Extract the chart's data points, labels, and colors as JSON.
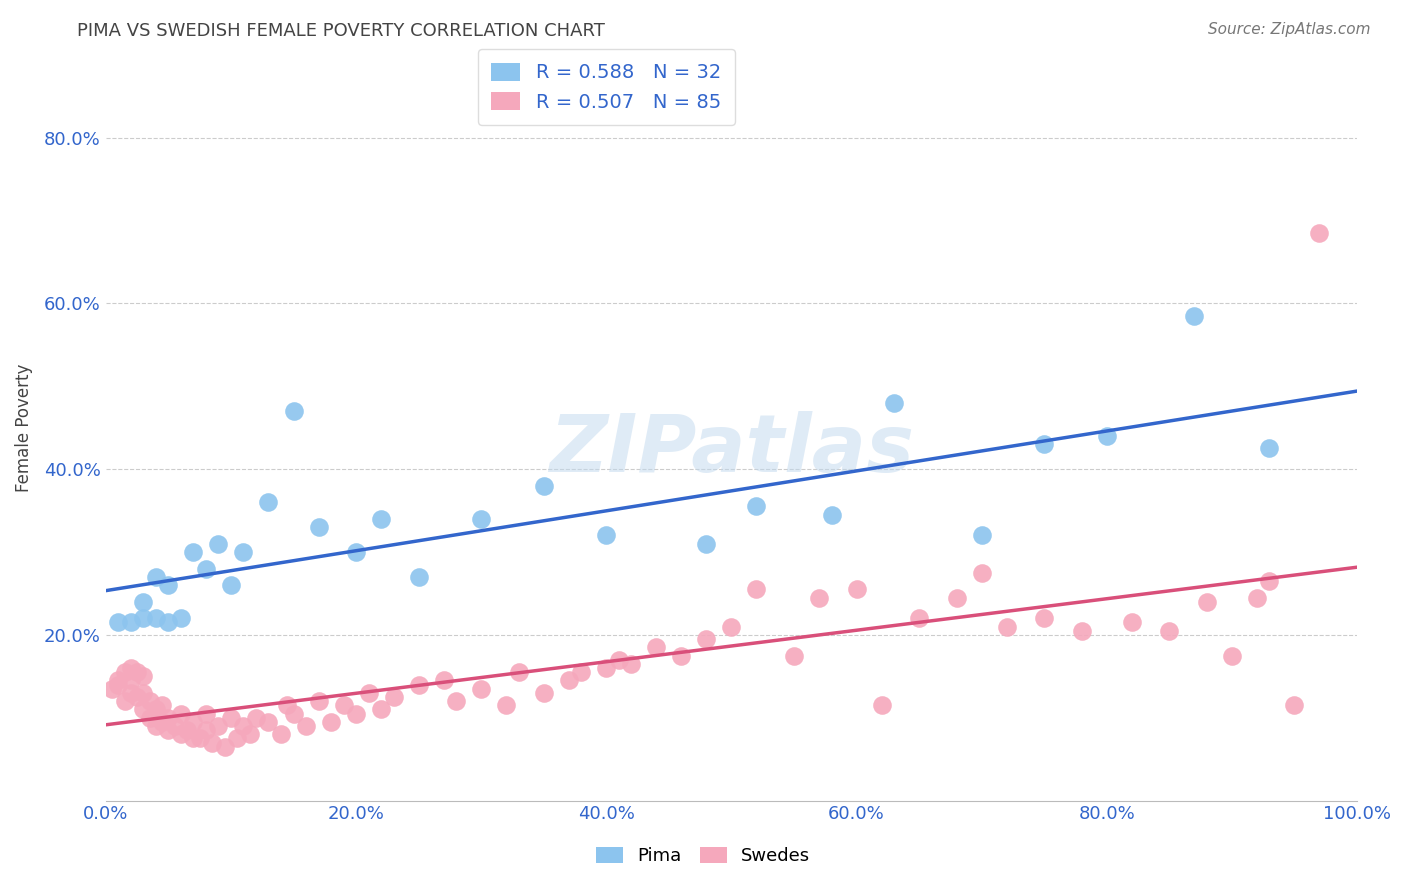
{
  "title": "PIMA VS SWEDISH FEMALE POVERTY CORRELATION CHART",
  "source_text": "Source: ZipAtlas.com",
  "xlabel": "",
  "ylabel": "Female Poverty",
  "watermark": "ZIPatlas",
  "xlim": [
    0.0,
    1.0
  ],
  "ylim": [
    0.0,
    0.9
  ],
  "xtick_labels": [
    "0.0%",
    "20.0%",
    "40.0%",
    "60.0%",
    "80.0%",
    "100.0%"
  ],
  "xtick_vals": [
    0.0,
    0.2,
    0.4,
    0.6,
    0.8,
    1.0
  ],
  "ytick_labels": [
    "20.0%",
    "40.0%",
    "60.0%",
    "80.0%"
  ],
  "ytick_vals": [
    0.2,
    0.4,
    0.6,
    0.8
  ],
  "pima_R": 0.588,
  "pima_N": 32,
  "swedes_R": 0.507,
  "swedes_N": 85,
  "pima_color": "#8CC4EE",
  "swedes_color": "#F5A8BC",
  "pima_line_color": "#3366CC",
  "swedes_line_color": "#D94F7A",
  "legend_label_pima": "Pima",
  "legend_label_swedes": "Swedes",
  "pima_x": [
    0.01,
    0.02,
    0.03,
    0.03,
    0.04,
    0.04,
    0.05,
    0.05,
    0.06,
    0.07,
    0.08,
    0.09,
    0.1,
    0.11,
    0.13,
    0.15,
    0.17,
    0.2,
    0.22,
    0.25,
    0.3,
    0.35,
    0.4,
    0.48,
    0.52,
    0.58,
    0.63,
    0.7,
    0.75,
    0.8,
    0.87,
    0.93
  ],
  "pima_y": [
    0.215,
    0.215,
    0.22,
    0.24,
    0.22,
    0.27,
    0.215,
    0.26,
    0.22,
    0.3,
    0.28,
    0.31,
    0.26,
    0.3,
    0.36,
    0.47,
    0.33,
    0.3,
    0.34,
    0.27,
    0.34,
    0.38,
    0.32,
    0.31,
    0.355,
    0.345,
    0.48,
    0.32,
    0.43,
    0.44,
    0.585,
    0.425
  ],
  "swedes_x": [
    0.005,
    0.01,
    0.01,
    0.015,
    0.015,
    0.02,
    0.02,
    0.02,
    0.025,
    0.025,
    0.03,
    0.03,
    0.03,
    0.035,
    0.035,
    0.04,
    0.04,
    0.045,
    0.045,
    0.05,
    0.05,
    0.055,
    0.06,
    0.06,
    0.065,
    0.07,
    0.07,
    0.075,
    0.08,
    0.08,
    0.085,
    0.09,
    0.095,
    0.1,
    0.105,
    0.11,
    0.115,
    0.12,
    0.13,
    0.14,
    0.145,
    0.15,
    0.16,
    0.17,
    0.18,
    0.19,
    0.2,
    0.21,
    0.22,
    0.23,
    0.25,
    0.27,
    0.28,
    0.3,
    0.32,
    0.33,
    0.35,
    0.37,
    0.38,
    0.4,
    0.41,
    0.42,
    0.44,
    0.46,
    0.48,
    0.5,
    0.52,
    0.55,
    0.57,
    0.6,
    0.62,
    0.65,
    0.68,
    0.7,
    0.72,
    0.75,
    0.78,
    0.82,
    0.85,
    0.88,
    0.9,
    0.92,
    0.93,
    0.95,
    0.97
  ],
  "swedes_y": [
    0.135,
    0.14,
    0.145,
    0.12,
    0.155,
    0.13,
    0.145,
    0.16,
    0.125,
    0.155,
    0.11,
    0.13,
    0.15,
    0.1,
    0.12,
    0.09,
    0.11,
    0.095,
    0.115,
    0.085,
    0.1,
    0.09,
    0.08,
    0.105,
    0.085,
    0.075,
    0.095,
    0.075,
    0.085,
    0.105,
    0.07,
    0.09,
    0.065,
    0.1,
    0.075,
    0.09,
    0.08,
    0.1,
    0.095,
    0.08,
    0.115,
    0.105,
    0.09,
    0.12,
    0.095,
    0.115,
    0.105,
    0.13,
    0.11,
    0.125,
    0.14,
    0.145,
    0.12,
    0.135,
    0.115,
    0.155,
    0.13,
    0.145,
    0.155,
    0.16,
    0.17,
    0.165,
    0.185,
    0.175,
    0.195,
    0.21,
    0.255,
    0.175,
    0.245,
    0.255,
    0.115,
    0.22,
    0.245,
    0.275,
    0.21,
    0.22,
    0.205,
    0.215,
    0.205,
    0.24,
    0.175,
    0.245,
    0.265,
    0.115,
    0.685
  ]
}
